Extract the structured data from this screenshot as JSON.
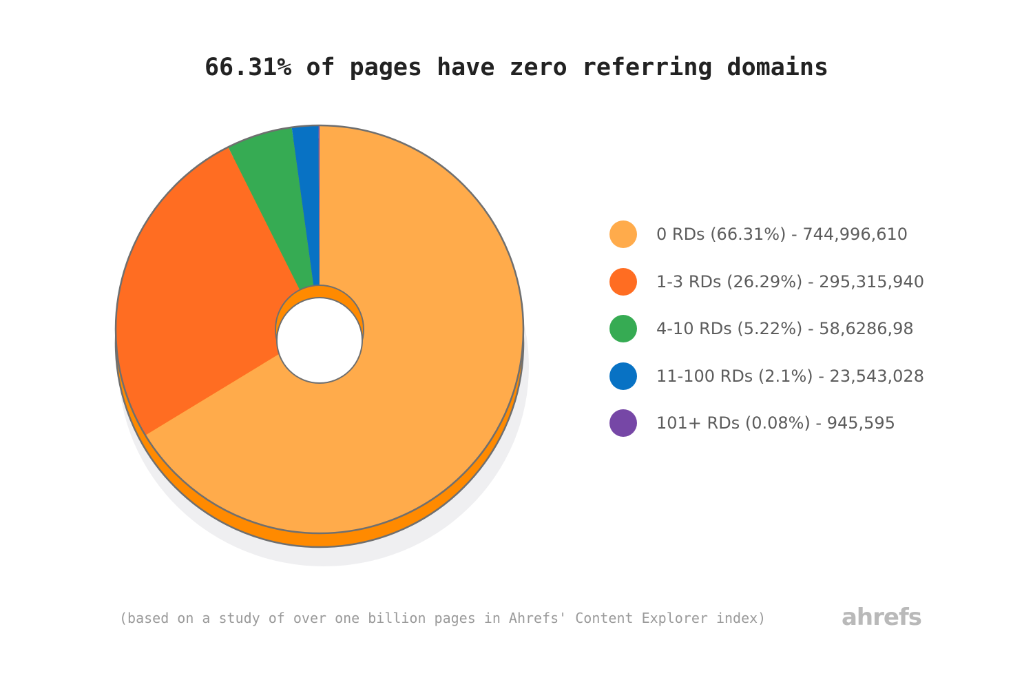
{
  "title": "66.31% of pages have zero referring domains",
  "footnote": "(based on a study of over one billion pages in Ahrefs' Content Explorer index)",
  "brand": "ahrefs",
  "colors": {
    "side_orange": "#ff8a00",
    "outline": "#6f6f6f",
    "shadow": "#efeff1"
  },
  "chart_data": {
    "type": "pie",
    "title": "66.31% of pages have zero referring domains",
    "legend_position": "right",
    "slices": [
      {
        "label": "0 RDs (66.31%) - 744,996,610",
        "category": "0 RDs",
        "percent": 66.31,
        "value": 744996610,
        "color": "#ffab4b"
      },
      {
        "label": "1-3 RDs (26.29%) - 295,315,940",
        "category": "1-3 RDs",
        "percent": 26.29,
        "value": 295315940,
        "color": "#ff6d22"
      },
      {
        "label": "4-10 RDs (5.22%) - 58,6286,98",
        "category": "4-10 RDs",
        "percent": 5.22,
        "value": 58628698,
        "color": "#36ab53"
      },
      {
        "label": "11-100 RDs (2.1%) - 23,543,028",
        "category": "11-100 RDs",
        "percent": 2.1,
        "value": 23543028,
        "color": "#0872c4"
      },
      {
        "label": "101+ RDs (0.08%) - 945,595",
        "category": "101+ RDs",
        "percent": 0.08,
        "value": 945595,
        "color": "#7647a6"
      }
    ]
  }
}
